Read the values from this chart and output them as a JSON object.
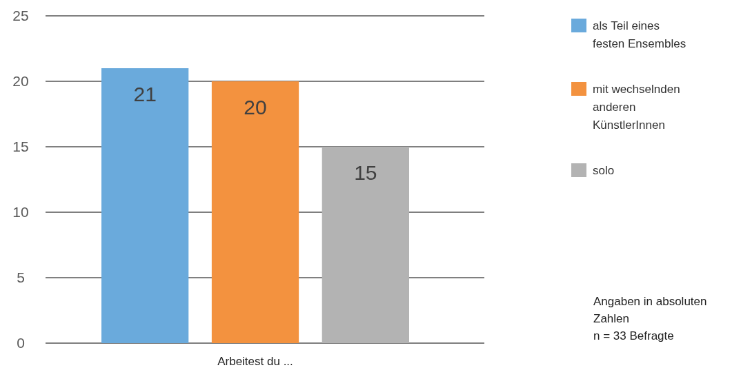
{
  "chart_data": {
    "type": "bar",
    "categories": [
      "Arbeitest du ..."
    ],
    "series": [
      {
        "name": "als Teil eines festen Ensembles",
        "color": "#6aaadc",
        "values": [
          21
        ]
      },
      {
        "name": "mit wechselnden anderen KünstlerInnen",
        "color": "#f3923f",
        "values": [
          20
        ]
      },
      {
        "name": "solo",
        "color": "#b3b3b3",
        "values": [
          15
        ]
      }
    ],
    "ylim": [
      0,
      25
    ],
    "yticks": [
      0,
      5,
      10,
      15,
      20,
      25
    ],
    "grid": "y",
    "legend": "right",
    "data_labels": true,
    "annotations": [
      "Angaben in absoluten Zahlen",
      "n = 33 Befragte"
    ]
  }
}
